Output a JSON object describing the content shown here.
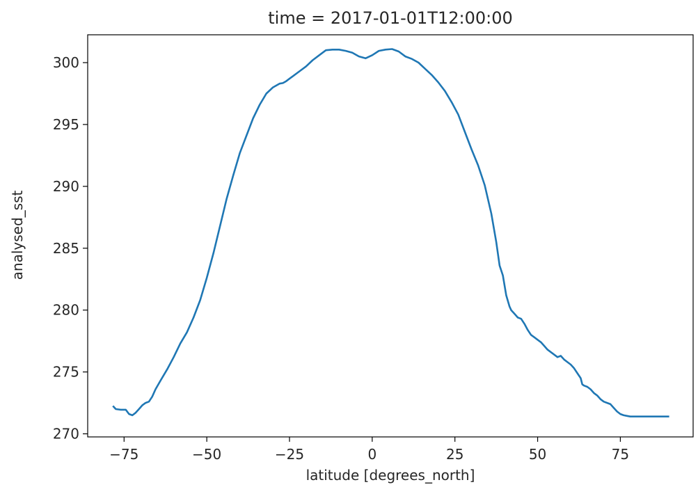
{
  "chart_data": {
    "type": "line",
    "title": "time = 2017-01-01T12:00:00",
    "xlabel": "latitude [degrees_north]",
    "ylabel": "analysed_sst",
    "xlim": [
      -86.0,
      97.0
    ],
    "ylim": [
      269.75,
      302.25
    ],
    "xticks": [
      -75,
      -50,
      -25,
      0,
      25,
      50,
      75
    ],
    "xtick_labels": [
      "−75",
      "−50",
      "−25",
      "0",
      "25",
      "50",
      "75"
    ],
    "yticks": [
      270,
      275,
      280,
      285,
      290,
      295,
      300
    ],
    "ytick_labels": [
      "270",
      "275",
      "280",
      "285",
      "290",
      "295",
      "300"
    ],
    "grid": false,
    "legend": "none",
    "series": [
      {
        "color": "#1f77b4",
        "x": [
          -78.2,
          -77.5,
          -76.0,
          -74.5,
          -73.5,
          -72.5,
          -71.5,
          -70.5,
          -69.5,
          -68.5,
          -67.5,
          -66.5,
          -65.5,
          -64.0,
          -62.0,
          -60.0,
          -58.0,
          -56.0,
          -54.0,
          -52.0,
          -50.0,
          -48.0,
          -46.0,
          -44.0,
          -42.0,
          -40.0,
          -38.0,
          -36.0,
          -34.0,
          -32.0,
          -30.0,
          -28.0,
          -27.0,
          -26.0,
          -25.0,
          -24.0,
          -22.0,
          -20.0,
          -18.0,
          -16.0,
          -14.0,
          -12.0,
          -10.0,
          -8.0,
          -6.0,
          -4.0,
          -2.0,
          0.0,
          2.0,
          4.0,
          6.0,
          8.0,
          10.0,
          12.0,
          14.0,
          16.0,
          18.0,
          20.0,
          22.0,
          24.0,
          26.0,
          28.0,
          30.0,
          32.0,
          34.0,
          36.0,
          37.5,
          38.5,
          39.5,
          40.5,
          41.5,
          42.0,
          43.0,
          44.0,
          45.0,
          46.0,
          47.0,
          48.0,
          49.0,
          50.0,
          51.0,
          52.0,
          53.0,
          54.0,
          55.0,
          56.0,
          57.0,
          58.0,
          59.0,
          60.0,
          61.0,
          62.0,
          63.0,
          63.5,
          64.0,
          65.0,
          66.0,
          67.0,
          68.0,
          69.0,
          70.0,
          71.0,
          72.0,
          73.0,
          74.0,
          75.0,
          76.0,
          77.0,
          78.0,
          80.0,
          82.0,
          84.0,
          86.0,
          88.0,
          89.5
        ],
        "values": [
          272.2,
          272.0,
          271.95,
          271.95,
          271.6,
          271.5,
          271.7,
          272.0,
          272.3,
          272.5,
          272.6,
          273.0,
          273.6,
          274.3,
          275.2,
          276.2,
          277.3,
          278.2,
          279.4,
          280.8,
          282.6,
          284.6,
          286.8,
          289.0,
          290.9,
          292.7,
          294.1,
          295.5,
          296.6,
          297.5,
          298.0,
          298.3,
          298.35,
          298.5,
          298.7,
          298.9,
          299.3,
          299.7,
          300.2,
          300.6,
          301.0,
          301.05,
          301.05,
          300.95,
          300.8,
          300.5,
          300.35,
          300.6,
          300.95,
          301.05,
          301.1,
          300.9,
          300.5,
          300.3,
          300.0,
          299.5,
          299.0,
          298.4,
          297.7,
          296.8,
          295.8,
          294.4,
          293.0,
          291.7,
          290.1,
          287.8,
          285.5,
          283.6,
          282.8,
          281.2,
          280.3,
          280.0,
          279.7,
          279.4,
          279.3,
          278.9,
          278.4,
          278.0,
          277.8,
          277.6,
          277.4,
          277.1,
          276.8,
          276.6,
          276.4,
          276.2,
          276.3,
          276.0,
          275.8,
          275.6,
          275.3,
          274.9,
          274.5,
          274.0,
          273.9,
          273.8,
          273.6,
          273.3,
          273.1,
          272.8,
          272.6,
          272.5,
          272.4,
          272.1,
          271.8,
          271.6,
          271.5,
          271.45,
          271.4,
          271.4,
          271.4,
          271.4,
          271.4,
          271.4,
          271.4
        ]
      }
    ]
  }
}
